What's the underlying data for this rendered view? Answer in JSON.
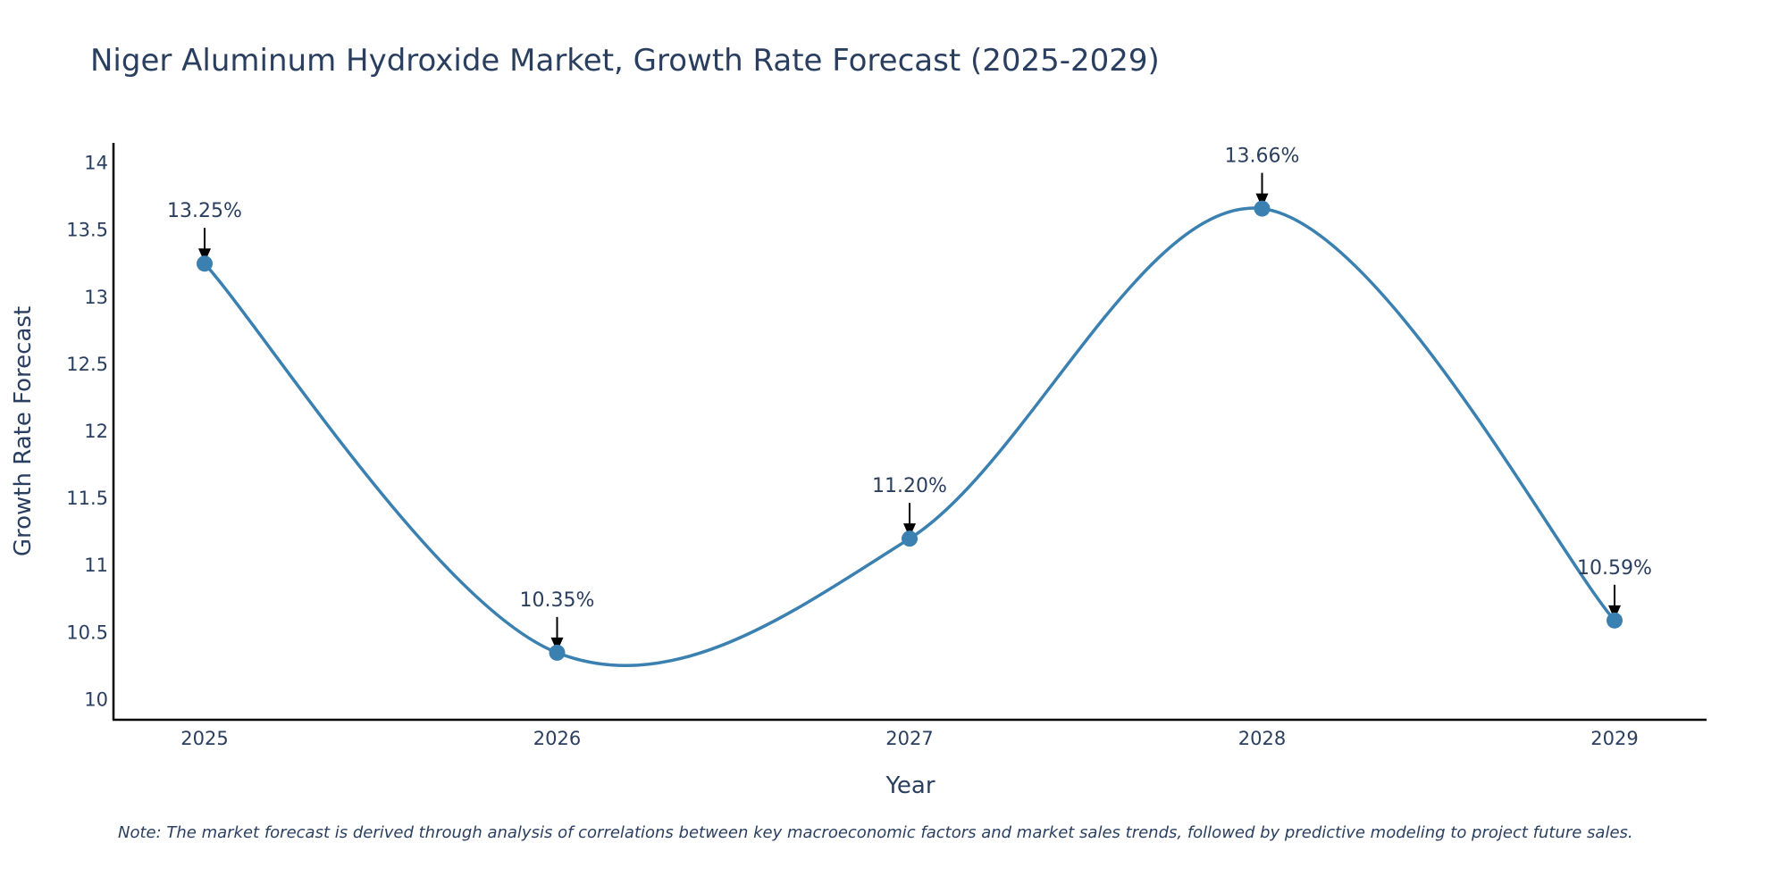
{
  "chart_data": {
    "type": "line",
    "title": "Niger Aluminum Hydroxide Market, Growth Rate Forecast (2025-2029)",
    "xlabel": "Year",
    "ylabel": "Growth Rate Forecast",
    "categories": [
      "2025",
      "2026",
      "2027",
      "2028",
      "2029"
    ],
    "values": [
      13.25,
      10.35,
      11.2,
      13.66,
      10.59
    ],
    "data_labels": [
      "13.25%",
      "10.35%",
      "11.20%",
      "13.66%",
      "10.59%"
    ],
    "ylim": [
      9.85,
      14.15
    ],
    "yticks": [
      10,
      10.5,
      11,
      11.5,
      12,
      12.5,
      13,
      13.5,
      14
    ],
    "ytick_labels": [
      "10",
      "10.5",
      "11",
      "11.5",
      "12",
      "12.5",
      "13",
      "13.5",
      "14"
    ],
    "grid": false,
    "line_shape": "spline",
    "series_color": "#3a80b0",
    "note": "Note: The market forecast is derived through analysis of correlations between key macroeconomic factors and market sales trends, followed by predictive modeling to project future sales."
  }
}
